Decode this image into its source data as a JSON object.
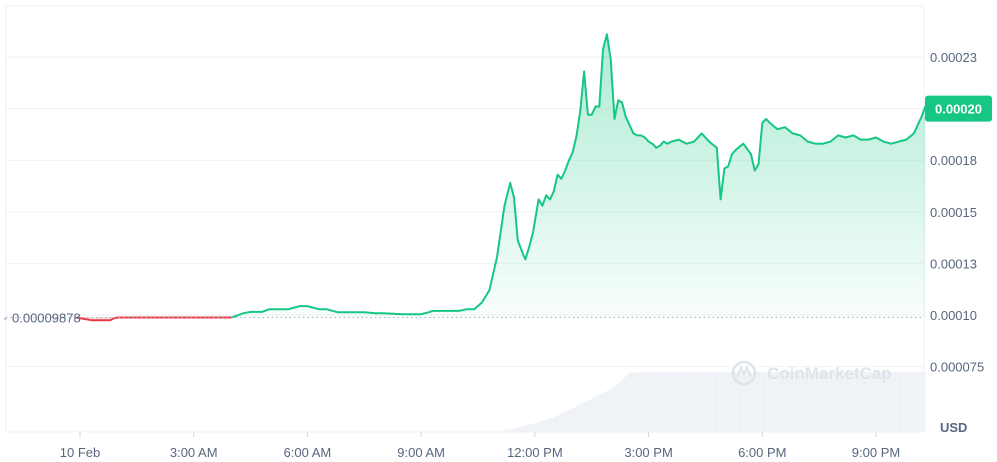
{
  "chart_data": {
    "type": "area",
    "currency_label": "USD",
    "watermark": "CoinMarketCap",
    "y_ticks": [
      {
        "value": 7.5e-05,
        "label": "0.000075"
      },
      {
        "value": 0.0001,
        "label": "0.00010"
      },
      {
        "value": 0.000125,
        "label": "0.00013"
      },
      {
        "value": 0.00015,
        "label": "0.00015"
      },
      {
        "value": 0.000175,
        "label": "0.00018"
      },
      {
        "value": 0.0002,
        "label": "0.00020"
      },
      {
        "value": 0.000225,
        "label": "0.00023"
      }
    ],
    "x_ticks": [
      {
        "value": 0,
        "label": "10 Feb"
      },
      {
        "value": 3,
        "label": "3:00 AM"
      },
      {
        "value": 6,
        "label": "6:00 AM"
      },
      {
        "value": 9,
        "label": "9:00 AM"
      },
      {
        "value": 12,
        "label": "12:00 PM"
      },
      {
        "value": 15,
        "label": "3:00 PM"
      },
      {
        "value": 18,
        "label": "6:00 PM"
      },
      {
        "value": 21,
        "label": "9:00 PM"
      }
    ],
    "open_price": {
      "value": 9.878e-05,
      "label": "0.00009878"
    },
    "current_price": {
      "value": 0.0002,
      "label": "0.00020"
    },
    "colors": {
      "up": "#16c784",
      "down": "#ea3943",
      "grid": "#eff2f5",
      "label_bg": "#16c784"
    },
    "series": [
      {
        "x": [
          -0.1,
          0.3,
          0.5,
          0.8,
          0.9,
          1.0,
          1.1,
          4.0,
          4.15,
          4.3,
          4.5,
          4.8,
          5.0,
          5.5,
          5.8,
          6.0,
          6.3,
          6.5,
          6.8,
          7.0,
          7.5,
          7.8,
          8.0,
          8.5,
          9.0,
          9.2,
          9.3,
          9.5,
          10.0,
          10.2,
          10.4,
          10.6,
          10.8,
          11.0,
          11.2,
          11.35,
          11.45,
          11.55,
          11.7,
          11.75,
          11.85,
          11.95,
          12.1,
          12.2,
          12.3,
          12.4,
          12.5,
          12.6,
          12.7,
          12.8,
          12.9,
          13.0,
          13.1,
          13.2,
          13.3,
          13.4,
          13.5,
          13.6,
          13.7,
          13.8,
          13.9,
          14.0,
          14.1,
          14.2,
          14.3,
          14.4,
          14.5,
          14.6,
          14.7,
          14.8,
          14.9,
          15.0,
          15.1,
          15.2,
          15.3,
          15.4,
          15.5,
          15.6,
          15.8,
          16.0,
          16.2,
          16.4,
          16.6,
          16.8,
          16.9,
          17.0,
          17.1,
          17.2,
          17.3,
          17.5,
          17.7,
          17.8,
          17.9,
          18.0,
          18.1,
          18.2,
          18.4,
          18.6,
          18.8,
          19.0,
          19.2,
          19.4,
          19.6,
          19.8,
          20.0,
          20.2,
          20.4,
          20.6,
          20.8,
          21.0,
          21.2,
          21.4,
          21.6,
          21.8,
          22.0,
          22.1,
          22.2,
          22.3
        ],
        "y": [
          9.88e-05,
          9.75e-05,
          9.75e-05,
          9.75e-05,
          9.85e-05,
          9.88e-05,
          9.88e-05,
          9.88e-05,
          9.98e-05,
          0.0001008,
          0.0001015,
          0.0001015,
          0.0001028,
          0.0001028,
          0.0001043,
          0.0001043,
          0.0001028,
          0.0001028,
          0.0001013,
          0.0001013,
          0.0001013,
          0.0001008,
          0.0001008,
          0.0001004,
          0.0001004,
          0.0001013,
          0.000102,
          0.000102,
          0.000102,
          0.0001028,
          0.0001028,
          0.000106,
          0.000112,
          0.000128,
          0.000153,
          0.000164,
          0.000157,
          0.000136,
          0.000129,
          0.000127,
          0.000133,
          0.00014,
          0.000156,
          0.000153,
          0.000158,
          0.000156,
          0.00016,
          0.000168,
          0.000166,
          0.00017,
          0.000175,
          0.000179,
          0.000187,
          0.000199,
          0.000218,
          0.000197,
          0.000197,
          0.000201,
          0.000201,
          0.000229,
          0.000236,
          0.000224,
          0.000195,
          0.000204,
          0.000203,
          0.000196,
          0.000192,
          0.000188,
          0.000187,
          0.000187,
          0.000186,
          0.000184,
          0.000183,
          0.000181,
          0.000182,
          0.000184,
          0.000183,
          0.000184,
          0.000185,
          0.000183,
          0.000184,
          0.000188,
          0.000184,
          0.000181,
          0.000156,
          0.000171,
          0.000172,
          0.000178,
          0.00018,
          0.000183,
          0.000178,
          0.00017,
          0.000173,
          0.000193,
          0.000195,
          0.000193,
          0.00019,
          0.000191,
          0.000188,
          0.000187,
          0.000184,
          0.000183,
          0.000183,
          0.000184,
          0.000187,
          0.000186,
          0.000187,
          0.000185,
          0.000185,
          0.000186,
          0.000184,
          0.000183,
          0.000184,
          0.000185,
          0.000188,
          0.000192,
          0.000196,
          0.000201
        ]
      }
    ],
    "volume": {
      "x": [
        0,
        11.0,
        11.2,
        11.5,
        12.0,
        12.5,
        13.0,
        13.5,
        14.0,
        14.3,
        14.5,
        15.0,
        18.0,
        21.0,
        22.3
      ],
      "y": [
        0,
        0,
        2,
        5,
        12,
        20,
        32,
        45,
        58,
        70,
        80,
        81,
        81,
        81,
        81
      ]
    }
  }
}
